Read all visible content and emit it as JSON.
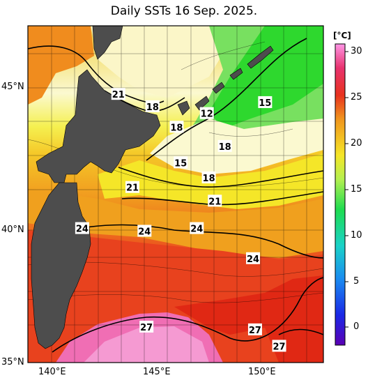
{
  "title": "Daily SSTs 16 Sep. 2025.",
  "unit": "[°C]",
  "lat_labels": [
    "45°N",
    "40°N",
    "35°N"
  ],
  "lon_labels": [
    "140°E",
    "145°E",
    "150°E"
  ],
  "colorbar_ticks": [
    "30",
    "25",
    "20",
    "15",
    "10",
    "5",
    "0"
  ],
  "contour_labels": [
    {
      "text": "21",
      "lon": 143.5,
      "lat": 44.8
    },
    {
      "text": "18",
      "lon": 145.2,
      "lat": 44.35
    },
    {
      "text": "18",
      "lon": 146.4,
      "lat": 43.6
    },
    {
      "text": "12",
      "lon": 147.9,
      "lat": 44.1
    },
    {
      "text": "15",
      "lon": 150.8,
      "lat": 44.5
    },
    {
      "text": "18",
      "lon": 148.8,
      "lat": 42.9
    },
    {
      "text": "15",
      "lon": 146.6,
      "lat": 42.3
    },
    {
      "text": "18",
      "lon": 148.0,
      "lat": 41.75
    },
    {
      "text": "21",
      "lon": 144.2,
      "lat": 41.4
    },
    {
      "text": "21",
      "lon": 148.3,
      "lat": 40.9
    },
    {
      "text": "24",
      "lon": 141.7,
      "lat": 39.9
    },
    {
      "text": "24",
      "lon": 144.8,
      "lat": 39.8
    },
    {
      "text": "24",
      "lon": 147.4,
      "lat": 39.9
    },
    {
      "text": "24",
      "lon": 150.2,
      "lat": 38.8
    },
    {
      "text": "27",
      "lon": 144.9,
      "lat": 36.3
    },
    {
      "text": "27",
      "lon": 150.3,
      "lat": 36.2
    },
    {
      "text": "27",
      "lon": 151.5,
      "lat": 35.6
    }
  ],
  "colors": {
    "land": "#4d4d4d",
    "warm_max": "#f070c8",
    "red": "#e8321e",
    "orange": "#f0781e",
    "yellow": "#f5e628",
    "pale": "#fbf9d0",
    "green": "#2ed82e",
    "frame": "#000000"
  }
}
